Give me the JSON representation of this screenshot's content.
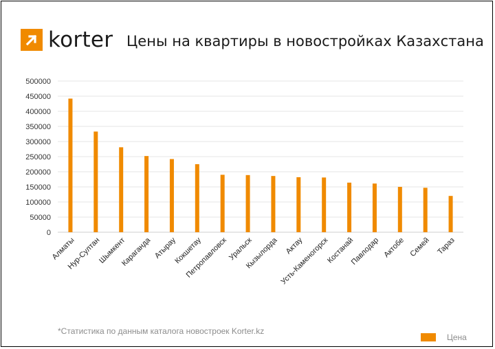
{
  "logo": {
    "text": "korter",
    "icon": "arrow-up-right-icon",
    "color": "#f08a00"
  },
  "title": "Цены на квартиры в новостройках Казахстана",
  "footnote": "*Статистика по данным каталога новостроек Korter.kz",
  "legend": {
    "label": "Цена"
  },
  "chart_data": {
    "type": "bar",
    "categories": [
      "Алматы",
      "Нур-Султан",
      "Шымкент",
      "Караганда",
      "Атырау",
      "Кокшетау",
      "Петропавловск",
      "Уральск",
      "Кызылорда",
      "Актау",
      "Усть-Каменогорск",
      "Костанай",
      "Павлодар",
      "Актобе",
      "Семей",
      "Тараз"
    ],
    "series": [
      {
        "name": "Цена",
        "color": "#f08a00",
        "values": [
          442000,
          333000,
          281000,
          252000,
          242000,
          225000,
          190000,
          189000,
          186000,
          182000,
          181000,
          164000,
          161000,
          150000,
          147000,
          120000
        ]
      }
    ],
    "title": "Цены на квартиры в новостройках Казахстана",
    "xlabel": "",
    "ylabel": "",
    "ylim": [
      0,
      500000
    ],
    "yticks": [
      "0",
      "50000",
      "100000",
      "150000",
      "200000",
      "250000",
      "300000",
      "350000",
      "400000",
      "450000",
      "500000"
    ],
    "grid": true,
    "legend_position": "bottom-right"
  }
}
